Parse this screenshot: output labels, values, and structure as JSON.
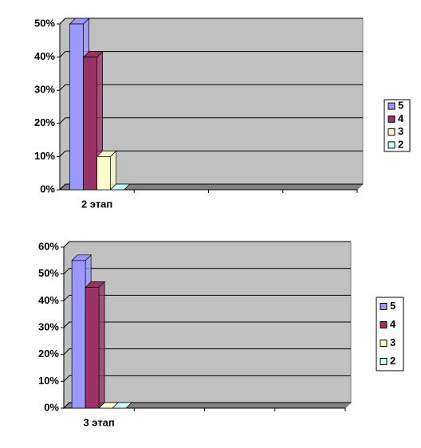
{
  "chart_data": [
    {
      "type": "bar",
      "categories": [
        "2 этап",
        null,
        null,
        null
      ],
      "series": [
        {
          "name": "5",
          "color": "#9999ff",
          "values": [
            50,
            null,
            null,
            null
          ]
        },
        {
          "name": "4",
          "color": "#993366",
          "values": [
            40,
            null,
            null,
            null
          ]
        },
        {
          "name": "3",
          "color": "#ffffcc",
          "values": [
            10,
            null,
            null,
            null
          ]
        },
        {
          "name": "2",
          "color": "#ccffff",
          "values": [
            0,
            null,
            null,
            null
          ]
        }
      ],
      "ylim": [
        0,
        50
      ],
      "yticks": [
        {
          "value": 0,
          "label": "0%"
        },
        {
          "value": 10,
          "label": "10%"
        },
        {
          "value": 20,
          "label": "20%"
        },
        {
          "value": 30,
          "label": "30%"
        },
        {
          "value": 40,
          "label": "40%"
        },
        {
          "value": 50,
          "label": "50%"
        }
      ],
      "grid": true,
      "legend": "right"
    },
    {
      "type": "bar",
      "categories": [
        "3 этап",
        null,
        null,
        null
      ],
      "series": [
        {
          "name": "5",
          "color": "#9999ff",
          "values": [
            55,
            null,
            null,
            null
          ]
        },
        {
          "name": "4",
          "color": "#993366",
          "values": [
            45,
            null,
            null,
            null
          ]
        },
        {
          "name": "3",
          "color": "#ffffcc",
          "values": [
            0,
            null,
            null,
            null
          ]
        },
        {
          "name": "2",
          "color": "#ccffff",
          "values": [
            0,
            null,
            null,
            null
          ]
        }
      ],
      "ylim": [
        0,
        60
      ],
      "yticks": [
        {
          "value": 0,
          "label": "0%"
        },
        {
          "value": 10,
          "label": "10%"
        },
        {
          "value": 20,
          "label": "20%"
        },
        {
          "value": 30,
          "label": "30%"
        },
        {
          "value": 40,
          "label": "40%"
        },
        {
          "value": 50,
          "label": "50%"
        },
        {
          "value": 60,
          "label": "60%"
        }
      ],
      "grid": true,
      "legend": "right"
    }
  ]
}
